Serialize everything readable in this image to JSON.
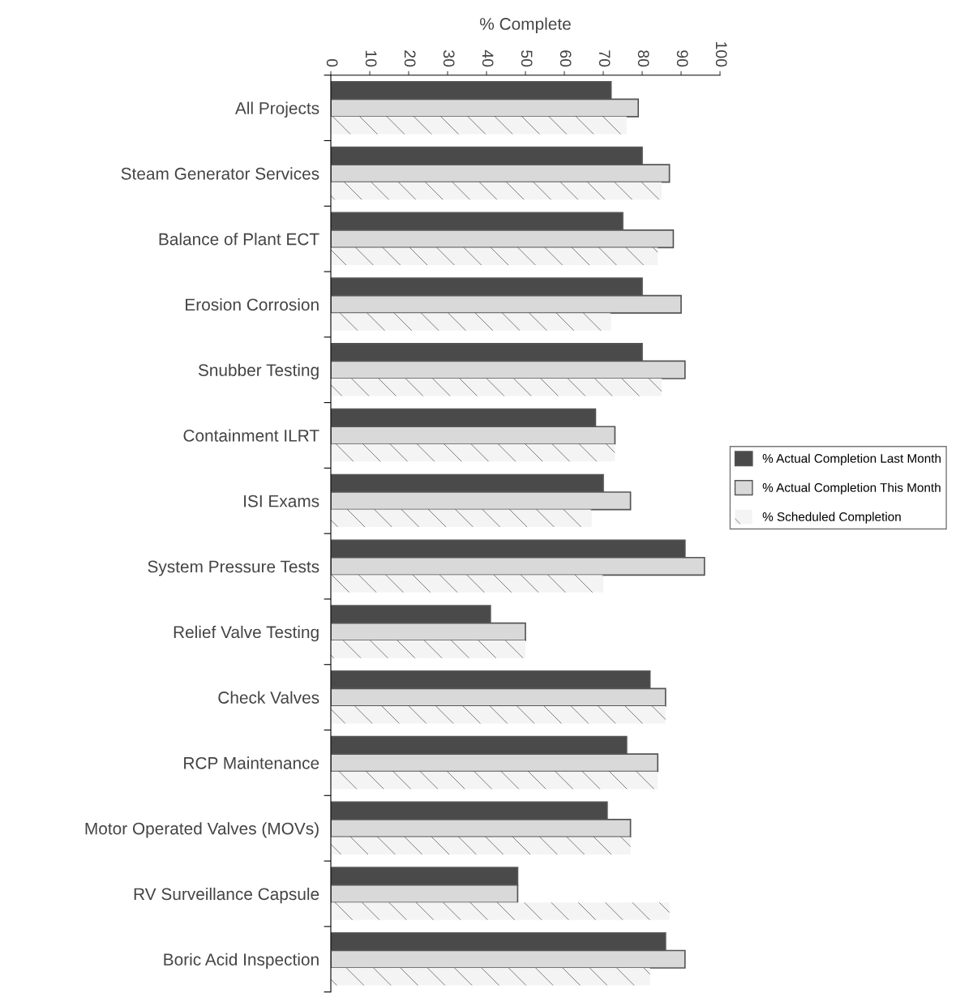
{
  "chart_data": {
    "type": "bar",
    "orientation": "horizontal",
    "xlabel": "% Complete",
    "categories": [
      "All Projects",
      "Steam Generator Services",
      "Balance of Plant ECT",
      "Erosion Corrosion",
      "Snubber Testing",
      "Containment ILRT",
      "ISI Exams",
      "System Pressure Tests",
      "Relief Valve Testing",
      "Check Valves",
      "RCP Maintenance",
      "Motor Operated Valves (MOVs)",
      "RV Surveillance Capsule",
      "Boric Acid Inspection"
    ],
    "series": [
      {
        "name": "% Actual Completion Last Month",
        "color": "#4a4a4a",
        "values": [
          72,
          80,
          75,
          80,
          80,
          68,
          70,
          91,
          41,
          82,
          76,
          71,
          48,
          86
        ]
      },
      {
        "name": "% Actual Completion This Month",
        "color": "#d9d9d9",
        "values": [
          79,
          87,
          88,
          90,
          91,
          73,
          77,
          96,
          50,
          86,
          84,
          77,
          48,
          91
        ]
      },
      {
        "name": "% Scheduled Completion",
        "color": "#f4f4f4",
        "values": [
          76,
          85,
          84,
          72,
          85,
          73,
          67,
          70,
          50,
          86,
          84,
          77,
          87,
          82
        ]
      }
    ],
    "xlim": [
      0,
      100
    ],
    "xticks": [
      0,
      10,
      20,
      30,
      40,
      50,
      60,
      70,
      80,
      90,
      100
    ],
    "grid": false,
    "legend": "right"
  }
}
